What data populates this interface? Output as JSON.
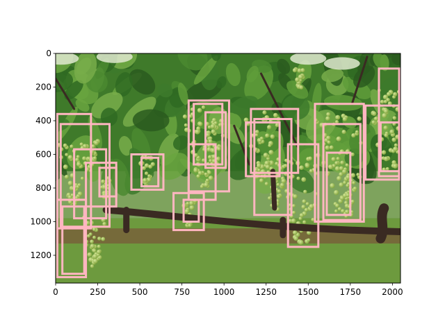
{
  "chart_data": {
    "type": "image-with-bounding-boxes",
    "title": "",
    "xlabel": "",
    "ylabel": "",
    "image_width": 2048,
    "image_height": 1365,
    "xlim": [
      0,
      2048
    ],
    "ylim": [
      1365,
      0
    ],
    "x_ticks": [
      0,
      250,
      500,
      750,
      1000,
      1250,
      1500,
      1750,
      2000
    ],
    "y_ticks": [
      0,
      200,
      400,
      600,
      800,
      1000,
      1200
    ],
    "box_color": "#ffb6c1",
    "image_palette": {
      "sky": "#e7f0dc",
      "canopy": "#3f7a2a",
      "leaf_light": "#7fb04a",
      "trunk": "#3a2a22",
      "grass": "#6d9a3e",
      "soil": "#7a5a3a",
      "grape": "#a7c65a"
    },
    "boxes": [
      {
        "x0": 10,
        "y0": 360,
        "x1": 210,
        "y1": 1040
      },
      {
        "x0": 30,
        "y0": 420,
        "x1": 320,
        "y1": 1030
      },
      {
        "x0": 10,
        "y0": 870,
        "x1": 180,
        "y1": 1330
      },
      {
        "x0": 40,
        "y0": 910,
        "x1": 170,
        "y1": 1310
      },
      {
        "x0": 110,
        "y0": 570,
        "x1": 300,
        "y1": 980
      },
      {
        "x0": 180,
        "y0": 650,
        "x1": 360,
        "y1": 910
      },
      {
        "x0": 260,
        "y0": 680,
        "x1": 360,
        "y1": 850
      },
      {
        "x0": 450,
        "y0": 600,
        "x1": 640,
        "y1": 810
      },
      {
        "x0": 510,
        "y0": 620,
        "x1": 610,
        "y1": 790
      },
      {
        "x0": 700,
        "y0": 830,
        "x1": 880,
        "y1": 1050
      },
      {
        "x0": 760,
        "y0": 870,
        "x1": 850,
        "y1": 1000
      },
      {
        "x0": 790,
        "y0": 280,
        "x1": 1030,
        "y1": 820
      },
      {
        "x0": 820,
        "y0": 300,
        "x1": 990,
        "y1": 660
      },
      {
        "x0": 790,
        "y0": 540,
        "x1": 950,
        "y1": 870
      },
      {
        "x0": 890,
        "y0": 350,
        "x1": 1010,
        "y1": 680
      },
      {
        "x0": 1130,
        "y0": 410,
        "x1": 1330,
        "y1": 730
      },
      {
        "x0": 1160,
        "y0": 330,
        "x1": 1440,
        "y1": 710
      },
      {
        "x0": 1180,
        "y0": 390,
        "x1": 1400,
        "y1": 960
      },
      {
        "x0": 1380,
        "y0": 540,
        "x1": 1560,
        "y1": 1150
      },
      {
        "x0": 1540,
        "y0": 300,
        "x1": 1830,
        "y1": 1000
      },
      {
        "x0": 1590,
        "y0": 420,
        "x1": 1810,
        "y1": 990
      },
      {
        "x0": 1610,
        "y0": 590,
        "x1": 1750,
        "y1": 960
      },
      {
        "x0": 1840,
        "y0": 310,
        "x1": 2040,
        "y1": 750
      },
      {
        "x0": 1920,
        "y0": 90,
        "x1": 2040,
        "y1": 730
      },
      {
        "x0": 1930,
        "y0": 410,
        "x1": 2040,
        "y1": 700
      }
    ]
  }
}
